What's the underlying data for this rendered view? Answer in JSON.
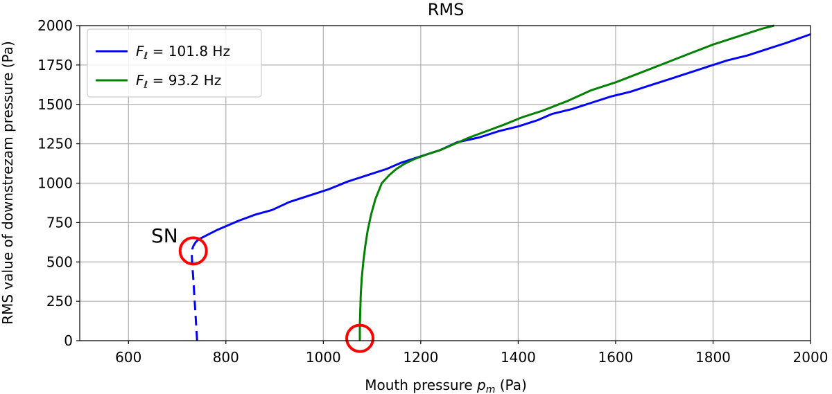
{
  "chart_data": {
    "type": "line",
    "title": "RMS",
    "xlabel": "Mouth pressure",
    "xlabel_symbol": "p",
    "xlabel_subscript": "m",
    "xlabel_unit": "(Pa)",
    "ylabel": "RMS value of downstrezam pressure (Pa)",
    "xlim": [
      500,
      2000
    ],
    "ylim": [
      0,
      2000
    ],
    "xticks": [
      600,
      800,
      1000,
      1200,
      1400,
      1600,
      1800,
      2000
    ],
    "yticks": [
      0,
      250,
      500,
      750,
      1000,
      1250,
      1500,
      1750,
      2000
    ],
    "grid": true,
    "legend_position": "top-left",
    "series": [
      {
        "name": "F_ℓ = 101.8 Hz",
        "legend_symbol": "F",
        "legend_subscript": "ℓ",
        "legend_value": " = 101.8 Hz",
        "color": "#0000ff",
        "unstable_x": [
          741,
          739,
          737,
          735,
          733,
          731,
          730,
          731,
          733
        ],
        "unstable_y": [
          0,
          100,
          200,
          300,
          400,
          480,
          550,
          580,
          600
        ],
        "stable_x": [
          733,
          738,
          745,
          758,
          780,
          825,
          860,
          895,
          930,
          970,
          1010,
          1050,
          1090,
          1130,
          1160,
          1200,
          1240,
          1275,
          1320,
          1360,
          1400,
          1440,
          1470,
          1510,
          1550,
          1590,
          1630,
          1670,
          1710,
          1750,
          1790,
          1830,
          1870,
          1910,
          1950,
          2000
        ],
        "stable_y": [
          600,
          625,
          645,
          665,
          700,
          760,
          800,
          830,
          880,
          920,
          960,
          1010,
          1050,
          1090,
          1130,
          1170,
          1210,
          1260,
          1290,
          1330,
          1360,
          1400,
          1440,
          1470,
          1510,
          1550,
          1580,
          1620,
          1660,
          1700,
          1740,
          1780,
          1810,
          1850,
          1890,
          1945
        ]
      },
      {
        "name": "F_ℓ = 93.2 Hz",
        "legend_symbol": "F",
        "legend_subscript": "ℓ",
        "legend_value": " = 93.2 Hz",
        "color": "#008000",
        "x": [
          1075,
          1075,
          1076,
          1077,
          1079,
          1082,
          1086,
          1091,
          1098,
          1107,
          1120,
          1135,
          1150,
          1165,
          1185,
          1210,
          1240,
          1270,
          1300,
          1335,
          1370,
          1410,
          1450,
          1500,
          1550,
          1600,
          1650,
          1700,
          1750,
          1800,
          1850,
          1900,
          1925
        ],
        "y": [
          0,
          100,
          200,
          300,
          400,
          500,
          600,
          700,
          800,
          900,
          1000,
          1050,
          1090,
          1120,
          1150,
          1180,
          1210,
          1250,
          1290,
          1330,
          1370,
          1420,
          1460,
          1520,
          1590,
          1640,
          1700,
          1760,
          1820,
          1880,
          1930,
          1980,
          2000
        ]
      }
    ],
    "annotations": [
      {
        "text": "SN",
        "x": 670,
        "y": 650
      }
    ],
    "markers": [
      {
        "type": "circle",
        "x": 733,
        "y": 570,
        "color": "#ff0000"
      },
      {
        "type": "circle",
        "x": 1075,
        "y": 15,
        "color": "#ff0000"
      }
    ]
  }
}
